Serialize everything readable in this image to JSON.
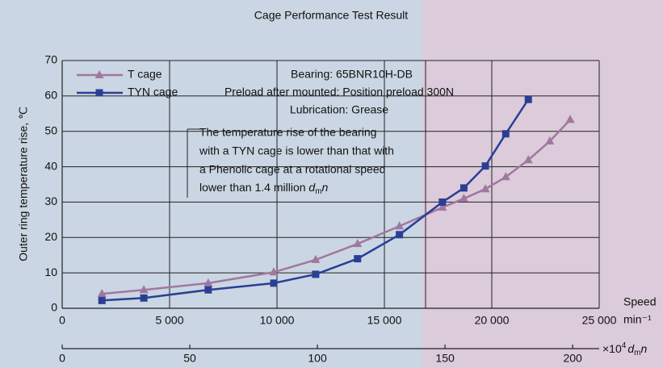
{
  "chart_data": {
    "type": "line",
    "title": "Cage Performance Test Result",
    "y_label": "Outer ring temperature rise, ℃",
    "x_label": "Speed",
    "x_unit": "min⁻¹",
    "x2_label": {
      "prefix": "×10",
      "sup": "4",
      "d": "d",
      "sub": "m",
      "n": "n"
    },
    "xlim": [
      0,
      25000
    ],
    "xticks": [
      0,
      {
        "value": 5000,
        "label": "5 000"
      },
      {
        "value": 10000,
        "label": "10 000"
      },
      {
        "value": 15000,
        "label": "15 000"
      },
      {
        "value": 20000,
        "label": "20 000"
      },
      {
        "value": 25000,
        "label": "25 000"
      }
    ],
    "x2lim": [
      0,
      210.4
    ],
    "x2ticks": [
      0,
      50,
      100,
      150,
      200
    ],
    "ylim": [
      0,
      70
    ],
    "yticks": [
      0,
      10,
      20,
      30,
      40,
      50,
      60,
      70
    ],
    "grid": true,
    "legend": "upper left",
    "series": [
      {
        "name": "T cage",
        "color": "#a0789f",
        "marker": "triangle",
        "x": [
          1850,
          3800,
          6800,
          9850,
          11800,
          13750,
          15700,
          17700,
          18700,
          19700,
          20650,
          21700,
          22700,
          23650
        ],
        "values": [
          4.1,
          5.2,
          7.1,
          10.2,
          13.7,
          18.2,
          23.2,
          28.5,
          31,
          33.7,
          37.1,
          41.9,
          47.2,
          53.3
        ]
      },
      {
        "name": "TYN cage",
        "color": "#2a3f94",
        "marker": "square",
        "x": [
          1850,
          3800,
          6800,
          9850,
          11800,
          13750,
          15700,
          17700,
          18700,
          19700,
          20650,
          21700
        ],
        "values": [
          2.2,
          2.9,
          5.2,
          7.1,
          9.6,
          14,
          20.8,
          30,
          34,
          40.2,
          49.3,
          59
        ]
      }
    ],
    "conditions": [
      "Bearing: 65BNR10H-DB",
      "Preload after mounted: Position preload 300N",
      "Lubrication: Grease"
    ],
    "note": {
      "lines": [
        "The temperature rise of the bearing",
        "with a TYN cage is lower than that with",
        "a Phenolic cage at a rotational speed"
      ],
      "last": {
        "text": "lower than 1.4 million ",
        "d": "d",
        "sub": "m",
        "n": "n"
      }
    }
  }
}
